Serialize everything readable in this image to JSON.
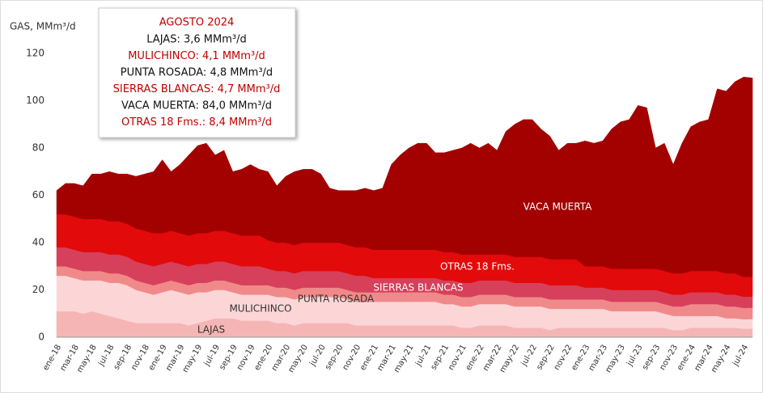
{
  "chart_data": {
    "type": "stacked_area",
    "ylabel": "GAS, MMm³/d",
    "ylim": [
      0,
      120
    ],
    "yticks": [
      0,
      20,
      40,
      60,
      80,
      100,
      120
    ],
    "grid": false,
    "categories": [
      "ene-18",
      null,
      "mar-18",
      null,
      "may-18",
      null,
      "jul-18",
      null,
      "sep-18",
      null,
      "nov-18",
      null,
      "ene-19",
      null,
      "mar-19",
      null,
      "may-19",
      null,
      "jul-19",
      null,
      "sep-19",
      null,
      "nov-19",
      null,
      "ene-20",
      null,
      "mar-20",
      null,
      "may-20",
      null,
      "jul-20",
      null,
      "sep-20",
      null,
      "nov-20",
      null,
      "ene-21",
      null,
      "mar-21",
      null,
      "may-21",
      null,
      "jul-21",
      null,
      "sep-21",
      null,
      "nov-21",
      null,
      "ene-22",
      null,
      "mar-22",
      null,
      "may-22",
      null,
      "jul-22",
      null,
      "sep-22",
      null,
      "nov-22",
      null,
      "ene-23",
      null,
      "mar-23",
      null,
      "may-23",
      null,
      "jul-23",
      null,
      "sep-23",
      null,
      "nov-23",
      null,
      "ene-24",
      null,
      "mar-24",
      null,
      "may-24",
      null,
      "jul-24",
      null
    ],
    "series": [
      {
        "name": "LAJAS",
        "color": "#f5b5b5",
        "values": [
          11,
          11,
          11,
          10,
          11,
          10,
          9,
          8,
          7,
          6,
          6,
          6,
          6,
          6,
          6,
          5,
          6,
          7,
          8,
          8,
          8,
          7,
          7,
          7,
          7,
          6,
          6,
          5,
          6,
          6,
          6,
          6,
          6,
          6,
          5,
          5,
          5,
          5,
          5,
          5,
          5,
          5,
          5,
          5,
          5,
          5,
          4,
          4,
          5,
          5,
          5,
          5,
          4,
          4,
          4,
          4,
          3,
          4,
          4,
          4,
          4,
          4,
          4,
          4,
          4,
          4,
          4,
          4,
          4,
          4,
          3,
          3,
          4,
          4,
          4,
          4,
          4,
          4,
          3.6,
          3.6
        ]
      },
      {
        "name": "MULICHINCO",
        "color": "#fcd6d6",
        "values": [
          15,
          15,
          14,
          14,
          13,
          14,
          14,
          15,
          15,
          14,
          13,
          12,
          13,
          14,
          13,
          13,
          13,
          12,
          12,
          12,
          11,
          11,
          11,
          11,
          11,
          11,
          11,
          11,
          11,
          11,
          11,
          11,
          11,
          10,
          10,
          10,
          10,
          10,
          10,
          10,
          10,
          10,
          10,
          10,
          9,
          9,
          9,
          9,
          9,
          9,
          9,
          9,
          9,
          9,
          9,
          9,
          9,
          8,
          8,
          8,
          8,
          8,
          8,
          7,
          7,
          7,
          7,
          7,
          7,
          6,
          6,
          6,
          5,
          5,
          5,
          5,
          4,
          4,
          4,
          4.1
        ]
      },
      {
        "name": "PUNTA ROSADA",
        "color": "#f08a8a",
        "values": [
          4,
          4,
          4,
          4,
          4,
          4,
          4,
          4,
          4,
          4,
          4,
          4,
          4,
          4,
          4,
          4,
          4,
          4,
          4,
          4,
          4,
          4,
          4,
          4,
          4,
          4,
          4,
          4,
          4,
          4,
          4,
          4,
          4,
          4,
          4,
          4,
          4,
          4,
          4,
          4,
          4,
          4,
          4,
          4,
          4,
          4,
          4,
          4,
          4,
          4,
          4,
          4,
          4,
          4,
          4,
          4,
          4,
          4,
          4,
          4,
          4,
          4,
          4,
          4,
          4,
          4,
          4,
          4,
          4,
          4,
          4,
          4,
          5,
          5,
          5,
          5,
          5,
          5,
          4.8,
          4.8
        ]
      },
      {
        "name": "SIERRAS BLANCAS",
        "color": "#d6405a",
        "values": [
          8,
          8,
          8,
          8,
          8,
          8,
          8,
          8,
          8,
          8,
          8,
          8,
          8,
          8,
          8,
          8,
          8,
          8,
          8,
          8,
          8,
          8,
          8,
          8,
          7,
          7,
          7,
          7,
          7,
          7,
          7,
          7,
          7,
          7,
          7,
          7,
          6,
          6,
          6,
          6,
          6,
          6,
          6,
          6,
          6,
          6,
          6,
          6,
          6,
          6,
          6,
          6,
          6,
          6,
          6,
          6,
          6,
          6,
          6,
          6,
          5,
          5,
          5,
          5,
          5,
          5,
          5,
          5,
          5,
          5,
          5,
          5,
          5,
          5,
          5,
          5,
          5,
          5,
          4.7,
          4.7
        ]
      },
      {
        "name": "OTRAS 18 Fms.",
        "color": "#e20a0a",
        "values": [
          14,
          14,
          14,
          14,
          14,
          14,
          14,
          14,
          14,
          14,
          14,
          14,
          13,
          13,
          13,
          13,
          13,
          13,
          13,
          13,
          13,
          13,
          13,
          13,
          12,
          12,
          12,
          12,
          12,
          12,
          12,
          12,
          12,
          12,
          12,
          12,
          12,
          12,
          12,
          12,
          12,
          12,
          12,
          12,
          12,
          12,
          12,
          12,
          11,
          11,
          11,
          11,
          11,
          11,
          11,
          11,
          11,
          11,
          11,
          11,
          9,
          9,
          9,
          9,
          9,
          9,
          9,
          9,
          9,
          9,
          9,
          9,
          9,
          9,
          9,
          9,
          9,
          9,
          8.4,
          8.4
        ]
      },
      {
        "name": "VACA MUERTA",
        "color": "#a30000",
        "values": [
          10,
          13,
          14,
          14,
          19,
          19,
          21,
          20,
          21,
          22,
          24,
          26,
          31,
          25,
          29,
          34,
          37,
          38,
          32,
          34,
          26,
          28,
          30,
          28,
          29,
          24,
          28,
          31,
          31,
          31,
          29,
          23,
          22,
          23,
          24,
          25,
          25,
          26,
          36,
          40,
          43,
          45,
          45,
          41,
          42,
          43,
          45,
          47,
          45,
          47,
          44,
          52,
          56,
          58,
          58,
          54,
          52,
          46,
          49,
          49,
          53,
          52,
          53,
          59,
          62,
          63,
          69,
          68,
          51,
          54,
          46,
          55,
          61,
          63,
          64,
          77,
          77,
          81,
          84.5,
          84
        ]
      }
    ],
    "annotation_box": {
      "title": "AGOSTO 2024",
      "lines": [
        "LAJAS: 3,6 MMm³/d",
        "MULICHINCO: 4,1 MMm³/d",
        "PUNTA ROSADA: 4,8 MMm³/d",
        "SIERRAS BLANCAS: 4,7 MMm³/d",
        "VACA MUERTA: 84,0 MMm³/d",
        "OTRAS 18 Fms.: 8,4 MMm³/d"
      ]
    }
  }
}
